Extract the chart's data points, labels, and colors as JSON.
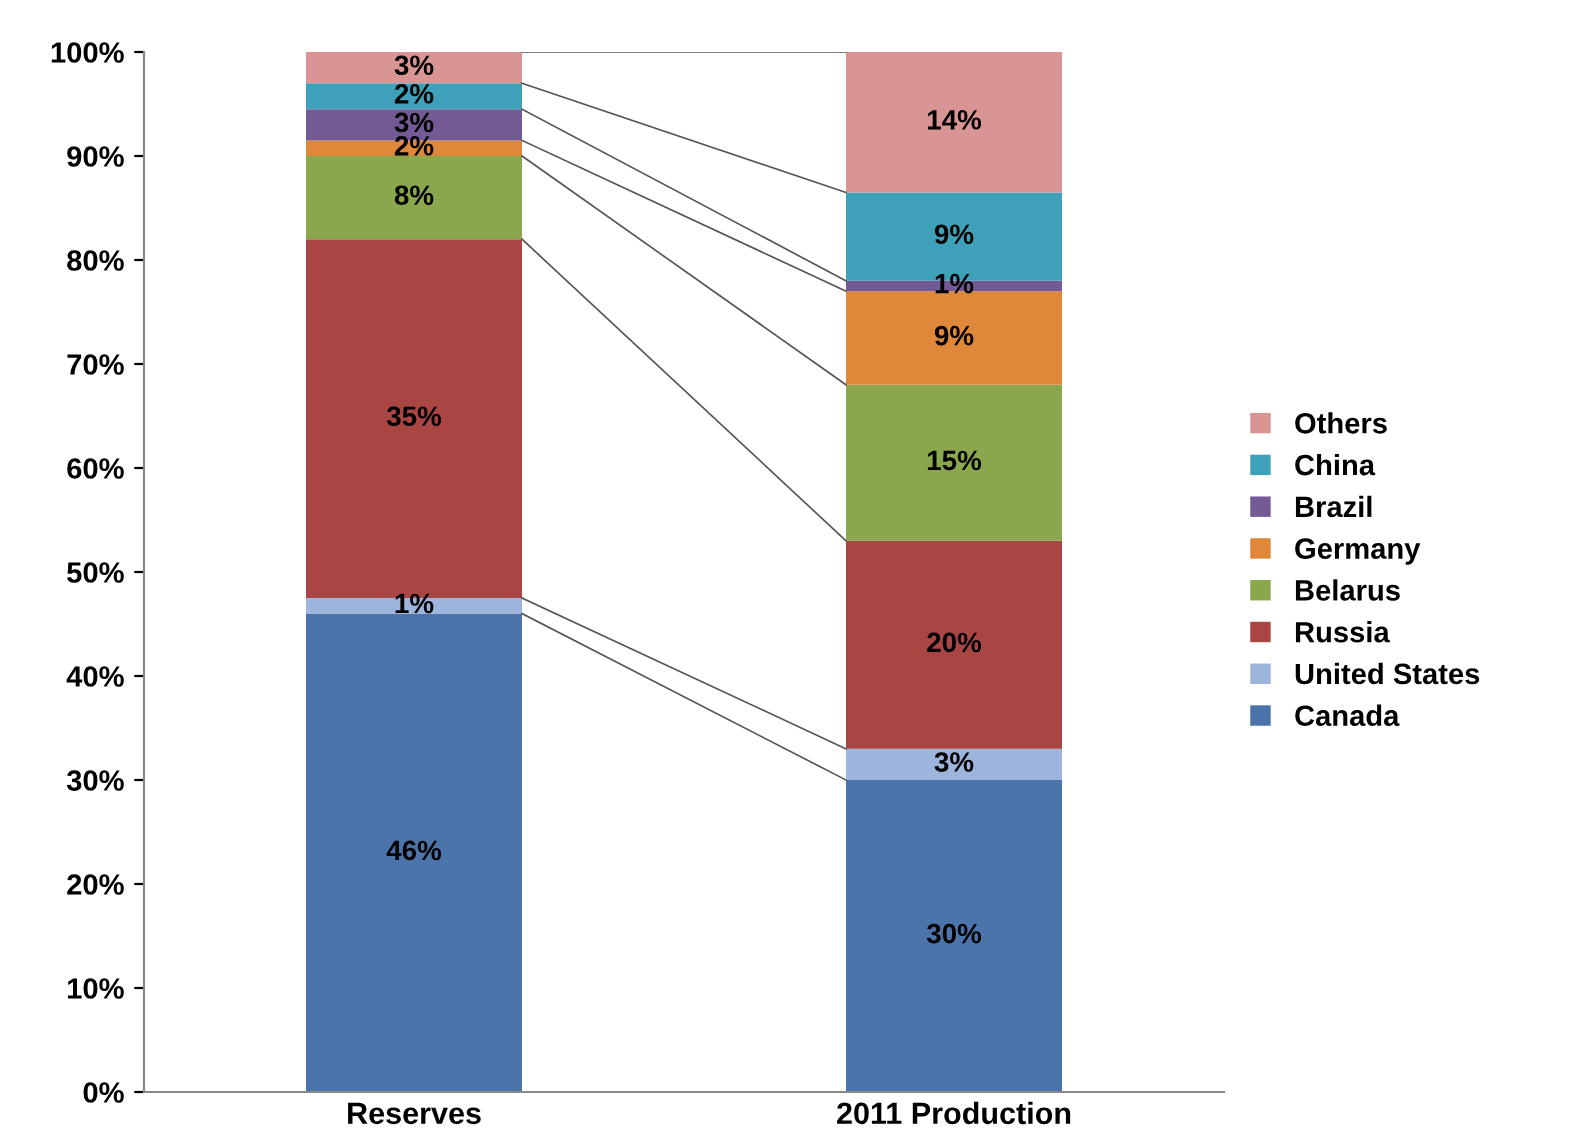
{
  "chart_data": {
    "type": "bar",
    "stacked": true,
    "categories": [
      "Reserves",
      "2011 Production"
    ],
    "series": [
      {
        "name": "Canada",
        "color": "#4a74aa",
        "values": [
          46,
          30
        ],
        "value_labels": [
          "46%",
          "30%"
        ]
      },
      {
        "name": "United States",
        "color": "#9db4dc",
        "values": [
          1.5,
          3
        ],
        "value_labels": [
          "1%",
          "3%"
        ]
      },
      {
        "name": "Russia",
        "color": "#a94643",
        "values": [
          34.5,
          20
        ],
        "value_labels": [
          "35%",
          "20%"
        ]
      },
      {
        "name": "Belarus",
        "color": "#8aa74e",
        "values": [
          8,
          15
        ],
        "value_labels": [
          "8%",
          "15%"
        ]
      },
      {
        "name": "Germany",
        "color": "#e0883a",
        "values": [
          1.5,
          9
        ],
        "value_labels": [
          "2%",
          "9%"
        ]
      },
      {
        "name": "Brazil",
        "color": "#745a95",
        "values": [
          3,
          1
        ],
        "value_labels": [
          "3%",
          "1%"
        ]
      },
      {
        "name": "China",
        "color": "#3fa0b9",
        "values": [
          2.5,
          8.5
        ],
        "value_labels": [
          "2%",
          "9%"
        ]
      },
      {
        "name": "Others",
        "color": "#d99593",
        "values": [
          3,
          13.5
        ],
        "value_labels": [
          "3%",
          "14%"
        ]
      }
    ],
    "ylim": [
      0,
      100
    ],
    "yticks": [
      {
        "value": 0,
        "label": "0%"
      },
      {
        "value": 10,
        "label": "10%"
      },
      {
        "value": 20,
        "label": "20%"
      },
      {
        "value": 30,
        "label": "30%"
      },
      {
        "value": 40,
        "label": "40%"
      },
      {
        "value": 50,
        "label": "50%"
      },
      {
        "value": 60,
        "label": "60%"
      },
      {
        "value": 70,
        "label": "70%"
      },
      {
        "value": 80,
        "label": "80%"
      },
      {
        "value": 90,
        "label": "90%"
      },
      {
        "value": 100,
        "label": "100%"
      }
    ],
    "grid": false,
    "legend": "right"
  }
}
